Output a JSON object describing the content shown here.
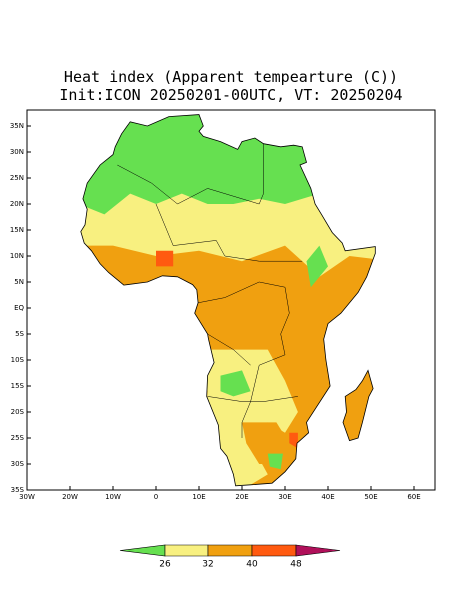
{
  "title": [
    "Heat index (Apparent tempearture (C))",
    "Init:ICON 20250201-00UTC, VT: 20250204"
  ],
  "lat_labels": [
    "35S",
    "30S",
    "25S",
    "20S",
    "15S",
    "10S",
    "5S",
    "EQ",
    "5N",
    "10N",
    "15N",
    "20N",
    "25N",
    "30N",
    "35N"
  ],
  "lon_labels": [
    "30W",
    "20W",
    "10W",
    "0",
    "10E",
    "20E",
    "30E",
    "40E",
    "50E",
    "60E"
  ],
  "colorbar": {
    "colors": [
      "#66e050",
      "#f8f080",
      "#f0a010",
      "#ff5a10",
      "#b0105a"
    ],
    "labels": [
      26,
      32,
      40,
      48
    ]
  }
}
